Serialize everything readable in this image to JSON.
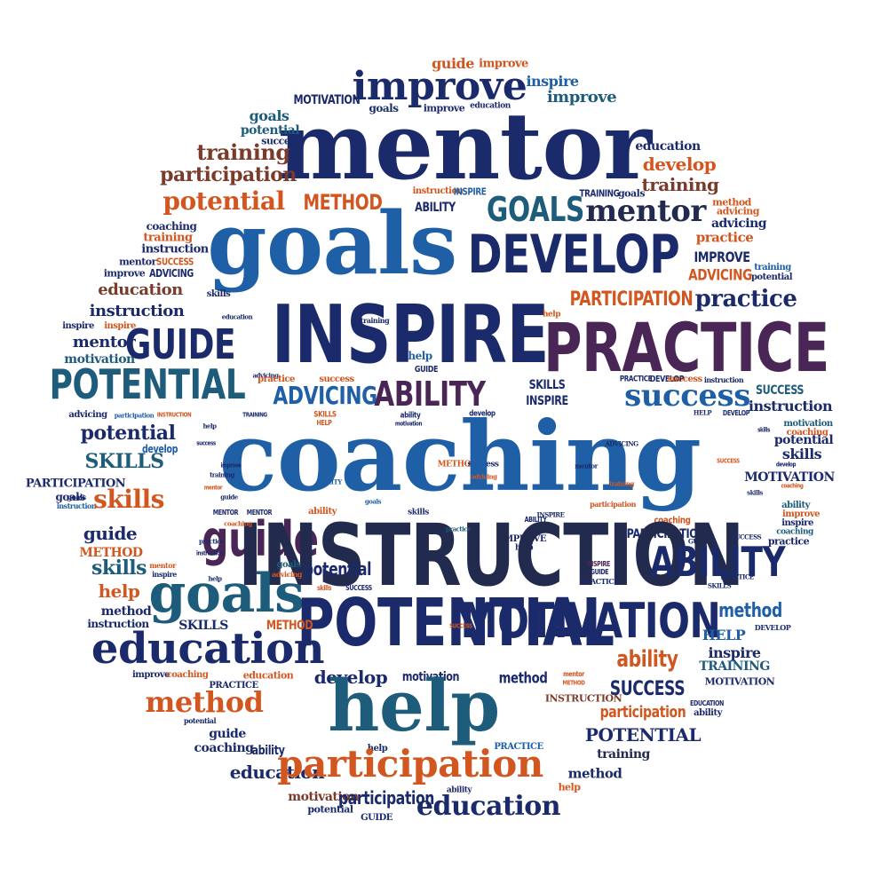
{
  "palette": {
    "navy": "#1b2a6b",
    "blue": "#1f5fa6",
    "teal": "#1d5c7a",
    "orange": "#d2561f",
    "purple": "#4a2656",
    "brown": "#7a3b2a",
    "darknavy": "#222b4e"
  },
  "words": [
    {
      "text": "guide",
      "color": "orange"
    },
    {
      "text": "improve",
      "color": "orange"
    },
    {
      "text": "improve",
      "color": "navy"
    },
    {
      "text": "inspire",
      "color": "blue"
    },
    {
      "text": "improve",
      "color": "teal"
    },
    {
      "text": "MOTIVATION",
      "color": "navy"
    },
    {
      "text": "goals",
      "color": "navy"
    },
    {
      "text": "improve",
      "color": "navy"
    },
    {
      "text": "education",
      "color": "navy"
    },
    {
      "text": "mentor",
      "color": "navy"
    },
    {
      "text": "goals",
      "color": "teal"
    },
    {
      "text": "potential",
      "color": "teal"
    },
    {
      "text": "success",
      "color": "navy"
    },
    {
      "text": "training",
      "color": "brown"
    },
    {
      "text": "participation",
      "color": "brown"
    },
    {
      "text": "education",
      "color": "navy"
    },
    {
      "text": "develop",
      "color": "orange"
    },
    {
      "text": "training",
      "color": "brown"
    },
    {
      "text": "potential",
      "color": "orange"
    },
    {
      "text": "METHOD",
      "color": "orange"
    },
    {
      "text": "instruction",
      "color": "orange"
    },
    {
      "text": "INSPIRE",
      "color": "blue"
    },
    {
      "text": "ABILITY",
      "color": "navy"
    },
    {
      "text": "GOALS",
      "color": "teal"
    },
    {
      "text": "TRAINING",
      "color": "navy"
    },
    {
      "text": "goals",
      "color": "navy"
    },
    {
      "text": "mentor",
      "color": "darknavy"
    },
    {
      "text": "method",
      "color": "orange"
    },
    {
      "text": "advicing",
      "color": "orange"
    },
    {
      "text": "advicing",
      "color": "navy"
    },
    {
      "text": "coaching",
      "color": "navy"
    },
    {
      "text": "training",
      "color": "orange"
    },
    {
      "text": "instruction",
      "color": "navy"
    },
    {
      "text": "goals",
      "color": "blue"
    },
    {
      "text": "DEVELOP",
      "color": "navy"
    },
    {
      "text": "practice",
      "color": "orange"
    },
    {
      "text": "mentor",
      "color": "navy"
    },
    {
      "text": "SUCCESS",
      "color": "orange"
    },
    {
      "text": "improve",
      "color": "navy"
    },
    {
      "text": "ADVICING",
      "color": "navy"
    },
    {
      "text": "IMPROVE",
      "color": "navy"
    },
    {
      "text": "training",
      "color": "blue"
    },
    {
      "text": "ADVICING",
      "color": "orange"
    },
    {
      "text": "potential",
      "color": "navy"
    },
    {
      "text": "education",
      "color": "brown"
    },
    {
      "text": "skills",
      "color": "navy"
    },
    {
      "text": "PARTICIPATION",
      "color": "orange"
    },
    {
      "text": "practice",
      "color": "navy"
    },
    {
      "text": "instruction",
      "color": "navy"
    },
    {
      "text": "INSPIRE",
      "color": "navy"
    },
    {
      "text": "education",
      "color": "navy"
    },
    {
      "text": "help",
      "color": "orange"
    },
    {
      "text": "inspire",
      "color": "navy"
    },
    {
      "text": "inspire",
      "color": "orange"
    },
    {
      "text": "GUIDE",
      "color": "navy"
    },
    {
      "text": "PRACTICE",
      "color": "purple"
    },
    {
      "text": "mentor",
      "color": "navy"
    },
    {
      "text": "motivation",
      "color": "teal"
    },
    {
      "text": "help",
      "color": "blue"
    },
    {
      "text": "GUIDE",
      "color": "navy"
    },
    {
      "text": "training",
      "color": "navy"
    },
    {
      "text": "POTENTIAL",
      "color": "teal"
    },
    {
      "text": "advicing",
      "color": "navy"
    },
    {
      "text": "practice",
      "color": "orange"
    },
    {
      "text": "success",
      "color": "orange"
    },
    {
      "text": "ADVICING",
      "color": "blue"
    },
    {
      "text": "ABILITY",
      "color": "purple"
    },
    {
      "text": "SKILLS",
      "color": "navy"
    },
    {
      "text": "INSPIRE",
      "color": "navy"
    },
    {
      "text": "PRACTICE",
      "color": "navy"
    },
    {
      "text": "DEVELOP",
      "color": "navy"
    },
    {
      "text": "success",
      "color": "orange"
    },
    {
      "text": "instruction",
      "color": "navy"
    },
    {
      "text": "success",
      "color": "blue"
    },
    {
      "text": "SUCCESS",
      "color": "teal"
    },
    {
      "text": "instruction",
      "color": "navy"
    },
    {
      "text": "advicing",
      "color": "navy"
    },
    {
      "text": "participation",
      "color": "blue"
    },
    {
      "text": "INSTRUCTION",
      "color": "orange"
    },
    {
      "text": "TRAINING",
      "color": "navy"
    },
    {
      "text": "SKILLS",
      "color": "orange"
    },
    {
      "text": "HELP",
      "color": "orange"
    },
    {
      "text": "ability",
      "color": "navy"
    },
    {
      "text": "develop",
      "color": "navy"
    },
    {
      "text": "HELP",
      "color": "navy"
    },
    {
      "text": "DEVELOP",
      "color": "navy"
    },
    {
      "text": "potential",
      "color": "navy"
    },
    {
      "text": "motivation",
      "color": "teal"
    },
    {
      "text": "coaching",
      "color": "orange"
    },
    {
      "text": "potential",
      "color": "navy"
    },
    {
      "text": "motivation",
      "color": "navy"
    },
    {
      "text": "SKILLS",
      "color": "teal"
    },
    {
      "text": "develop",
      "color": "blue"
    },
    {
      "text": "METHOD",
      "color": "orange"
    },
    {
      "text": "success",
      "color": "navy"
    },
    {
      "text": "skills",
      "color": "navy"
    },
    {
      "text": "develop",
      "color": "navy"
    },
    {
      "text": "MOTIVATION",
      "color": "navy"
    },
    {
      "text": "coaching",
      "color": "orange"
    },
    {
      "text": "PARTICIPATION",
      "color": "navy"
    },
    {
      "text": "goals",
      "color": "navy"
    },
    {
      "text": "goals",
      "color": "navy"
    },
    {
      "text": "instruction",
      "color": "blue"
    },
    {
      "text": "coaching",
      "color": "blue"
    },
    {
      "text": "skills",
      "color": "orange"
    },
    {
      "text": "MENTOR",
      "color": "navy"
    },
    {
      "text": "MENTOR",
      "color": "navy"
    },
    {
      "text": "ability",
      "color": "orange"
    },
    {
      "text": "skills",
      "color": "navy"
    },
    {
      "text": "ability",
      "color": "teal"
    },
    {
      "text": "improve",
      "color": "orange"
    },
    {
      "text": "inspire",
      "color": "navy"
    },
    {
      "text": "coaching",
      "color": "teal"
    },
    {
      "text": "practice",
      "color": "navy"
    },
    {
      "text": "coaching",
      "color": "orange"
    },
    {
      "text": "PARTICIPATION",
      "color": "navy"
    },
    {
      "text": "ABILITY",
      "color": "navy"
    },
    {
      "text": "guide",
      "color": "navy"
    },
    {
      "text": "GUIDE",
      "color": "navy"
    },
    {
      "text": "IMPROVE",
      "color": "navy"
    },
    {
      "text": "help",
      "color": "navy"
    },
    {
      "text": "guide",
      "color": "navy"
    },
    {
      "text": "guide",
      "color": "purple"
    },
    {
      "text": "INSTRUCTION",
      "color": "darknavy"
    },
    {
      "text": "ABILITY",
      "color": "navy"
    },
    {
      "text": "METHOD",
      "color": "orange"
    },
    {
      "text": "skills",
      "color": "teal"
    },
    {
      "text": "mentor",
      "color": "orange"
    },
    {
      "text": "inspire",
      "color": "navy"
    },
    {
      "text": "goals",
      "color": "teal"
    },
    {
      "text": "advicing",
      "color": "orange"
    },
    {
      "text": "potential",
      "color": "navy"
    },
    {
      "text": "INSPIRE",
      "color": "purple"
    },
    {
      "text": "GUIDE",
      "color": "navy"
    },
    {
      "text": "PRACTICE",
      "color": "navy"
    },
    {
      "text": "help",
      "color": "orange"
    },
    {
      "text": "goals",
      "color": "teal"
    },
    {
      "text": "skills",
      "color": "orange"
    },
    {
      "text": "SUCCESS",
      "color": "navy"
    },
    {
      "text": "POTENTIAL",
      "color": "navy"
    },
    {
      "text": "MOTIVATION",
      "color": "navy"
    },
    {
      "text": "method",
      "color": "blue"
    },
    {
      "text": "method",
      "color": "navy"
    },
    {
      "text": "instruction",
      "color": "navy"
    },
    {
      "text": "SKILLS",
      "color": "navy"
    },
    {
      "text": "METHOD",
      "color": "orange"
    },
    {
      "text": "SUCCESS",
      "color": "orange"
    },
    {
      "text": "HELP",
      "color": "blue"
    },
    {
      "text": "DEVELOP",
      "color": "navy"
    },
    {
      "text": "education",
      "color": "navy"
    },
    {
      "text": "ability",
      "color": "orange"
    },
    {
      "text": "inspire",
      "color": "navy"
    },
    {
      "text": "TRAINING",
      "color": "teal"
    },
    {
      "text": "improve",
      "color": "navy"
    },
    {
      "text": "coaching",
      "color": "orange"
    },
    {
      "text": "education",
      "color": "orange"
    },
    {
      "text": "develop",
      "color": "navy"
    },
    {
      "text": "motivation",
      "color": "navy"
    },
    {
      "text": "method",
      "color": "navy"
    },
    {
      "text": "mentor",
      "color": "orange"
    },
    {
      "text": "METHOD",
      "color": "orange"
    },
    {
      "text": "SUCCESS",
      "color": "navy"
    },
    {
      "text": "PRACTICE",
      "color": "navy"
    },
    {
      "text": "MOTIVATION",
      "color": "navy"
    },
    {
      "text": "INSTRUCTION",
      "color": "brown"
    },
    {
      "text": "method",
      "color": "orange"
    },
    {
      "text": "help",
      "color": "teal"
    },
    {
      "text": "participation",
      "color": "orange"
    },
    {
      "text": "ability",
      "color": "navy"
    },
    {
      "text": "potential",
      "color": "navy"
    },
    {
      "text": "EDUCATION",
      "color": "navy"
    },
    {
      "text": "guide",
      "color": "navy"
    },
    {
      "text": "POTENTIAL",
      "color": "navy"
    },
    {
      "text": "coaching",
      "color": "navy"
    },
    {
      "text": "ability",
      "color": "navy"
    },
    {
      "text": "help",
      "color": "navy"
    },
    {
      "text": "PRACTICE",
      "color": "blue"
    },
    {
      "text": "training",
      "color": "darknavy"
    },
    {
      "text": "education",
      "color": "navy"
    },
    {
      "text": "participation",
      "color": "orange"
    },
    {
      "text": "method",
      "color": "navy"
    },
    {
      "text": "help",
      "color": "orange"
    },
    {
      "text": "motivation",
      "color": "brown"
    },
    {
      "text": "participation",
      "color": "navy"
    },
    {
      "text": "ability",
      "color": "navy"
    },
    {
      "text": "potential",
      "color": "navy"
    },
    {
      "text": "GUIDE",
      "color": "navy"
    },
    {
      "text": "education",
      "color": "navy"
    },
    {
      "text": "advicing",
      "color": "orange"
    },
    {
      "text": "participation",
      "color": "orange"
    },
    {
      "text": "practice",
      "color": "teal"
    },
    {
      "text": "coaching",
      "color": "orange"
    },
    {
      "text": "ABILITY",
      "color": "blue"
    },
    {
      "text": "INSPIRE",
      "color": "navy"
    },
    {
      "text": "mentor",
      "color": "navy"
    },
    {
      "text": "goals",
      "color": "blue"
    },
    {
      "text": "training",
      "color": "orange"
    },
    {
      "text": "mentor",
      "color": "orange"
    },
    {
      "text": "improve",
      "color": "navy"
    },
    {
      "text": "SUCCESS",
      "color": "orange"
    },
    {
      "text": "skills",
      "color": "navy"
    },
    {
      "text": "success",
      "color": "navy"
    },
    {
      "text": "skills",
      "color": "navy"
    },
    {
      "text": "help",
      "color": "navy"
    },
    {
      "text": "guide",
      "color": "navy"
    },
    {
      "text": "practice",
      "color": "navy"
    },
    {
      "text": "help",
      "color": "navy"
    },
    {
      "text": "SKILLS",
      "color": "navy"
    },
    {
      "text": "ADVICING",
      "color": "navy"
    },
    {
      "text": "PRACTICE",
      "color": "navy"
    },
    {
      "text": "training",
      "color": "navy"
    },
    {
      "text": "SUCCESS",
      "color": "navy"
    },
    {
      "text": "instruction",
      "color": "navy"
    },
    {
      "text": "instruction",
      "color": "navy"
    },
    {
      "text": "participation",
      "color": "navy"
    },
    {
      "text": "GUIDE",
      "color": "navy"
    },
    {
      "text": "help",
      "color": "navy"
    },
    {
      "text": "mentor",
      "color": "navy"
    },
    {
      "text": "guide",
      "color": "navy"
    },
    {
      "text": "practice",
      "color": "navy"
    },
    {
      "text": "MENTOR",
      "color": "navy"
    }
  ]
}
